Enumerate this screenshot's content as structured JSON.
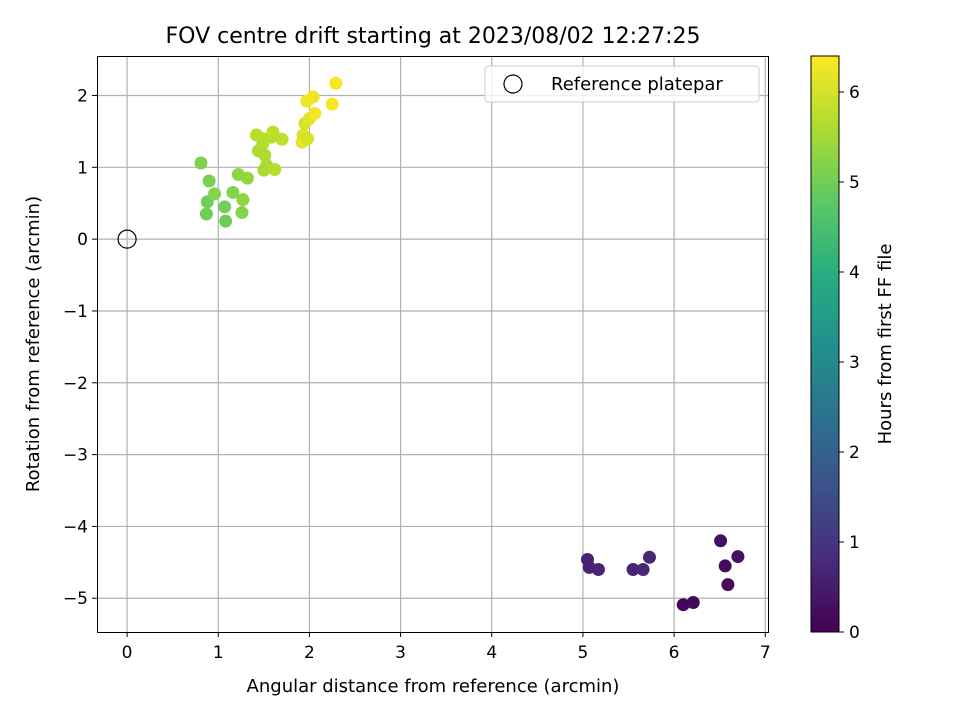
{
  "chart_data": {
    "type": "scatter",
    "title": "FOV centre drift starting at 2023/08/02 12:27:25",
    "xlabel": "Angular distance from reference (arcmin)",
    "ylabel": "Rotation from reference (arcmin)",
    "xlim": [
      -0.33,
      7.03
    ],
    "ylim": [
      -5.47,
      2.55
    ],
    "xticks": [
      0,
      1,
      2,
      3,
      4,
      5,
      6,
      7
    ],
    "yticks": [
      2,
      1,
      0,
      -1,
      -2,
      -3,
      -4,
      -5
    ],
    "xtick_labels": [
      "0",
      "1",
      "2",
      "3",
      "4",
      "5",
      "6",
      "7"
    ],
    "ytick_labels": [
      "2",
      "1",
      "0",
      "−1",
      "−2",
      "−3",
      "−4",
      "−5"
    ],
    "grid": true,
    "legend": {
      "placement": "upper-right",
      "entries": [
        {
          "label": "Reference platepar",
          "marker": "open-circle"
        }
      ]
    },
    "reference_point": {
      "x": 0,
      "y": 0
    },
    "colorbar": {
      "label": "Hours from first FF file",
      "range": [
        0,
        6.4
      ],
      "ticks": [
        0,
        1,
        2,
        3,
        4,
        5,
        6
      ],
      "tick_labels": [
        "0",
        "1",
        "2",
        "3",
        "4",
        "5",
        "6"
      ],
      "colormap": "viridis"
    },
    "points": [
      {
        "x": 6.1,
        "y": -5.09,
        "hours": 0.1
      },
      {
        "x": 6.21,
        "y": -5.06,
        "hours": 0.15
      },
      {
        "x": 6.59,
        "y": -4.81,
        "hours": 0.2
      },
      {
        "x": 6.56,
        "y": -4.55,
        "hours": 0.2
      },
      {
        "x": 6.51,
        "y": -4.2,
        "hours": 0.25
      },
      {
        "x": 6.7,
        "y": -4.42,
        "hours": 0.3
      },
      {
        "x": 5.05,
        "y": -4.46,
        "hours": 0.6
      },
      {
        "x": 5.07,
        "y": -4.57,
        "hours": 0.6
      },
      {
        "x": 5.17,
        "y": -4.6,
        "hours": 0.65
      },
      {
        "x": 5.55,
        "y": -4.6,
        "hours": 0.65
      },
      {
        "x": 5.66,
        "y": -4.6,
        "hours": 0.7
      },
      {
        "x": 5.73,
        "y": -4.43,
        "hours": 0.7
      },
      {
        "x": 0.81,
        "y": 1.06,
        "hours": 5.15
      },
      {
        "x": 0.9,
        "y": 0.81,
        "hours": 5.1
      },
      {
        "x": 0.88,
        "y": 0.52,
        "hours": 5.0
      },
      {
        "x": 0.87,
        "y": 0.35,
        "hours": 5.0
      },
      {
        "x": 0.96,
        "y": 0.63,
        "hours": 5.2
      },
      {
        "x": 1.07,
        "y": 0.45,
        "hours": 5.0
      },
      {
        "x": 1.08,
        "y": 0.25,
        "hours": 4.95
      },
      {
        "x": 1.16,
        "y": 0.65,
        "hours": 5.2
      },
      {
        "x": 1.22,
        "y": 0.9,
        "hours": 5.3
      },
      {
        "x": 1.26,
        "y": 0.37,
        "hours": 5.2
      },
      {
        "x": 1.27,
        "y": 0.55,
        "hours": 5.3
      },
      {
        "x": 1.32,
        "y": 0.85,
        "hours": 5.35
      },
      {
        "x": 1.42,
        "y": 1.45,
        "hours": 5.7
      },
      {
        "x": 1.44,
        "y": 1.23,
        "hours": 5.6
      },
      {
        "x": 1.48,
        "y": 1.4,
        "hours": 5.7
      },
      {
        "x": 1.49,
        "y": 1.33,
        "hours": 5.65
      },
      {
        "x": 1.5,
        "y": 0.96,
        "hours": 5.55
      },
      {
        "x": 1.51,
        "y": 1.17,
        "hours": 5.6
      },
      {
        "x": 1.53,
        "y": 1.03,
        "hours": 5.6
      },
      {
        "x": 1.58,
        "y": 1.42,
        "hours": 5.7
      },
      {
        "x": 1.6,
        "y": 1.49,
        "hours": 5.75
      },
      {
        "x": 1.62,
        "y": 0.97,
        "hours": 5.7
      },
      {
        "x": 1.7,
        "y": 1.39,
        "hours": 5.75
      },
      {
        "x": 1.92,
        "y": 1.35,
        "hours": 6.2
      },
      {
        "x": 1.93,
        "y": 1.45,
        "hours": 6.1
      },
      {
        "x": 1.95,
        "y": 1.61,
        "hours": 6.0
      },
      {
        "x": 1.97,
        "y": 1.92,
        "hours": 6.25
      },
      {
        "x": 1.98,
        "y": 1.4,
        "hours": 6.0
      },
      {
        "x": 2.0,
        "y": 1.68,
        "hours": 6.15
      },
      {
        "x": 2.04,
        "y": 1.98,
        "hours": 6.25
      },
      {
        "x": 2.06,
        "y": 1.75,
        "hours": 6.3
      },
      {
        "x": 2.25,
        "y": 1.88,
        "hours": 6.35
      },
      {
        "x": 2.29,
        "y": 2.17,
        "hours": 6.35
      }
    ]
  }
}
